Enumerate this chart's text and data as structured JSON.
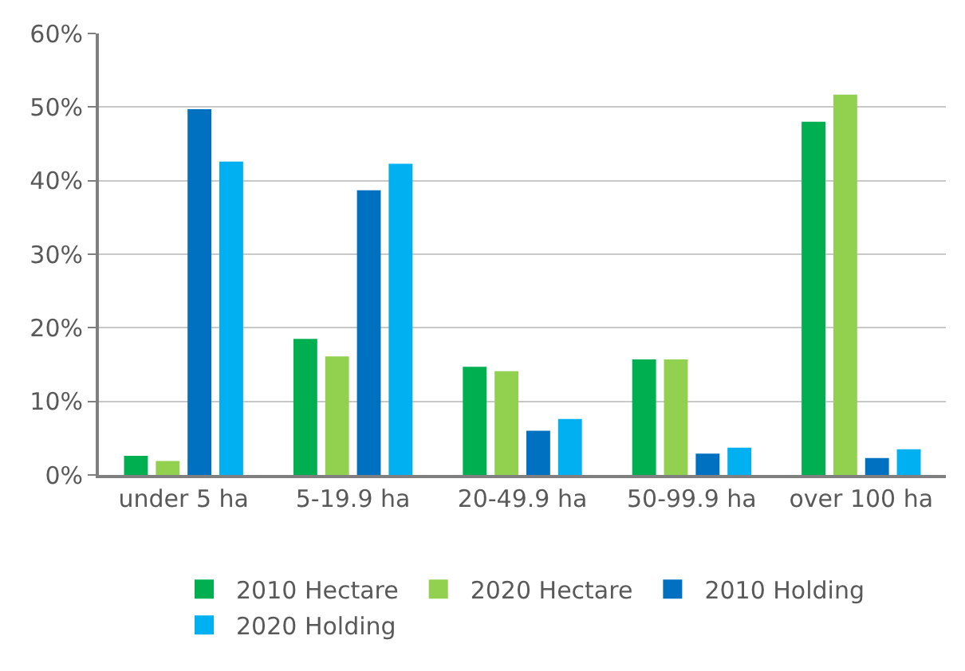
{
  "chart_data": {
    "type": "bar",
    "categories": [
      "under 5 ha",
      "5-19.9 ha",
      "20-49.9 ha",
      "50-99.9 ha",
      "over 100 ha"
    ],
    "series": [
      {
        "name": "2010 Hectare",
        "color": "#00b050",
        "values": [
          2.6,
          18.5,
          14.7,
          15.7,
          48.0
        ]
      },
      {
        "name": "2020 Hectare",
        "color": "#92d050",
        "values": [
          1.9,
          16.1,
          14.1,
          15.7,
          51.7
        ]
      },
      {
        "name": "2010 Holding",
        "color": "#0070c0",
        "values": [
          49.7,
          38.7,
          6.0,
          2.9,
          2.3
        ]
      },
      {
        "name": "2020 Holding",
        "color": "#00b0f0",
        "values": [
          42.6,
          42.3,
          7.6,
          3.7,
          3.5
        ]
      }
    ],
    "ylim": [
      0,
      60
    ],
    "yticks": [
      {
        "value": 0,
        "label": "0%"
      },
      {
        "value": 10,
        "label": "10%"
      },
      {
        "value": 20,
        "label": "20%"
      },
      {
        "value": 30,
        "label": "30%"
      },
      {
        "value": 40,
        "label": "40%"
      },
      {
        "value": 50,
        "label": "50%"
      },
      {
        "value": 60,
        "label": "60%"
      }
    ],
    "grid": "y",
    "legend": "bottom"
  }
}
